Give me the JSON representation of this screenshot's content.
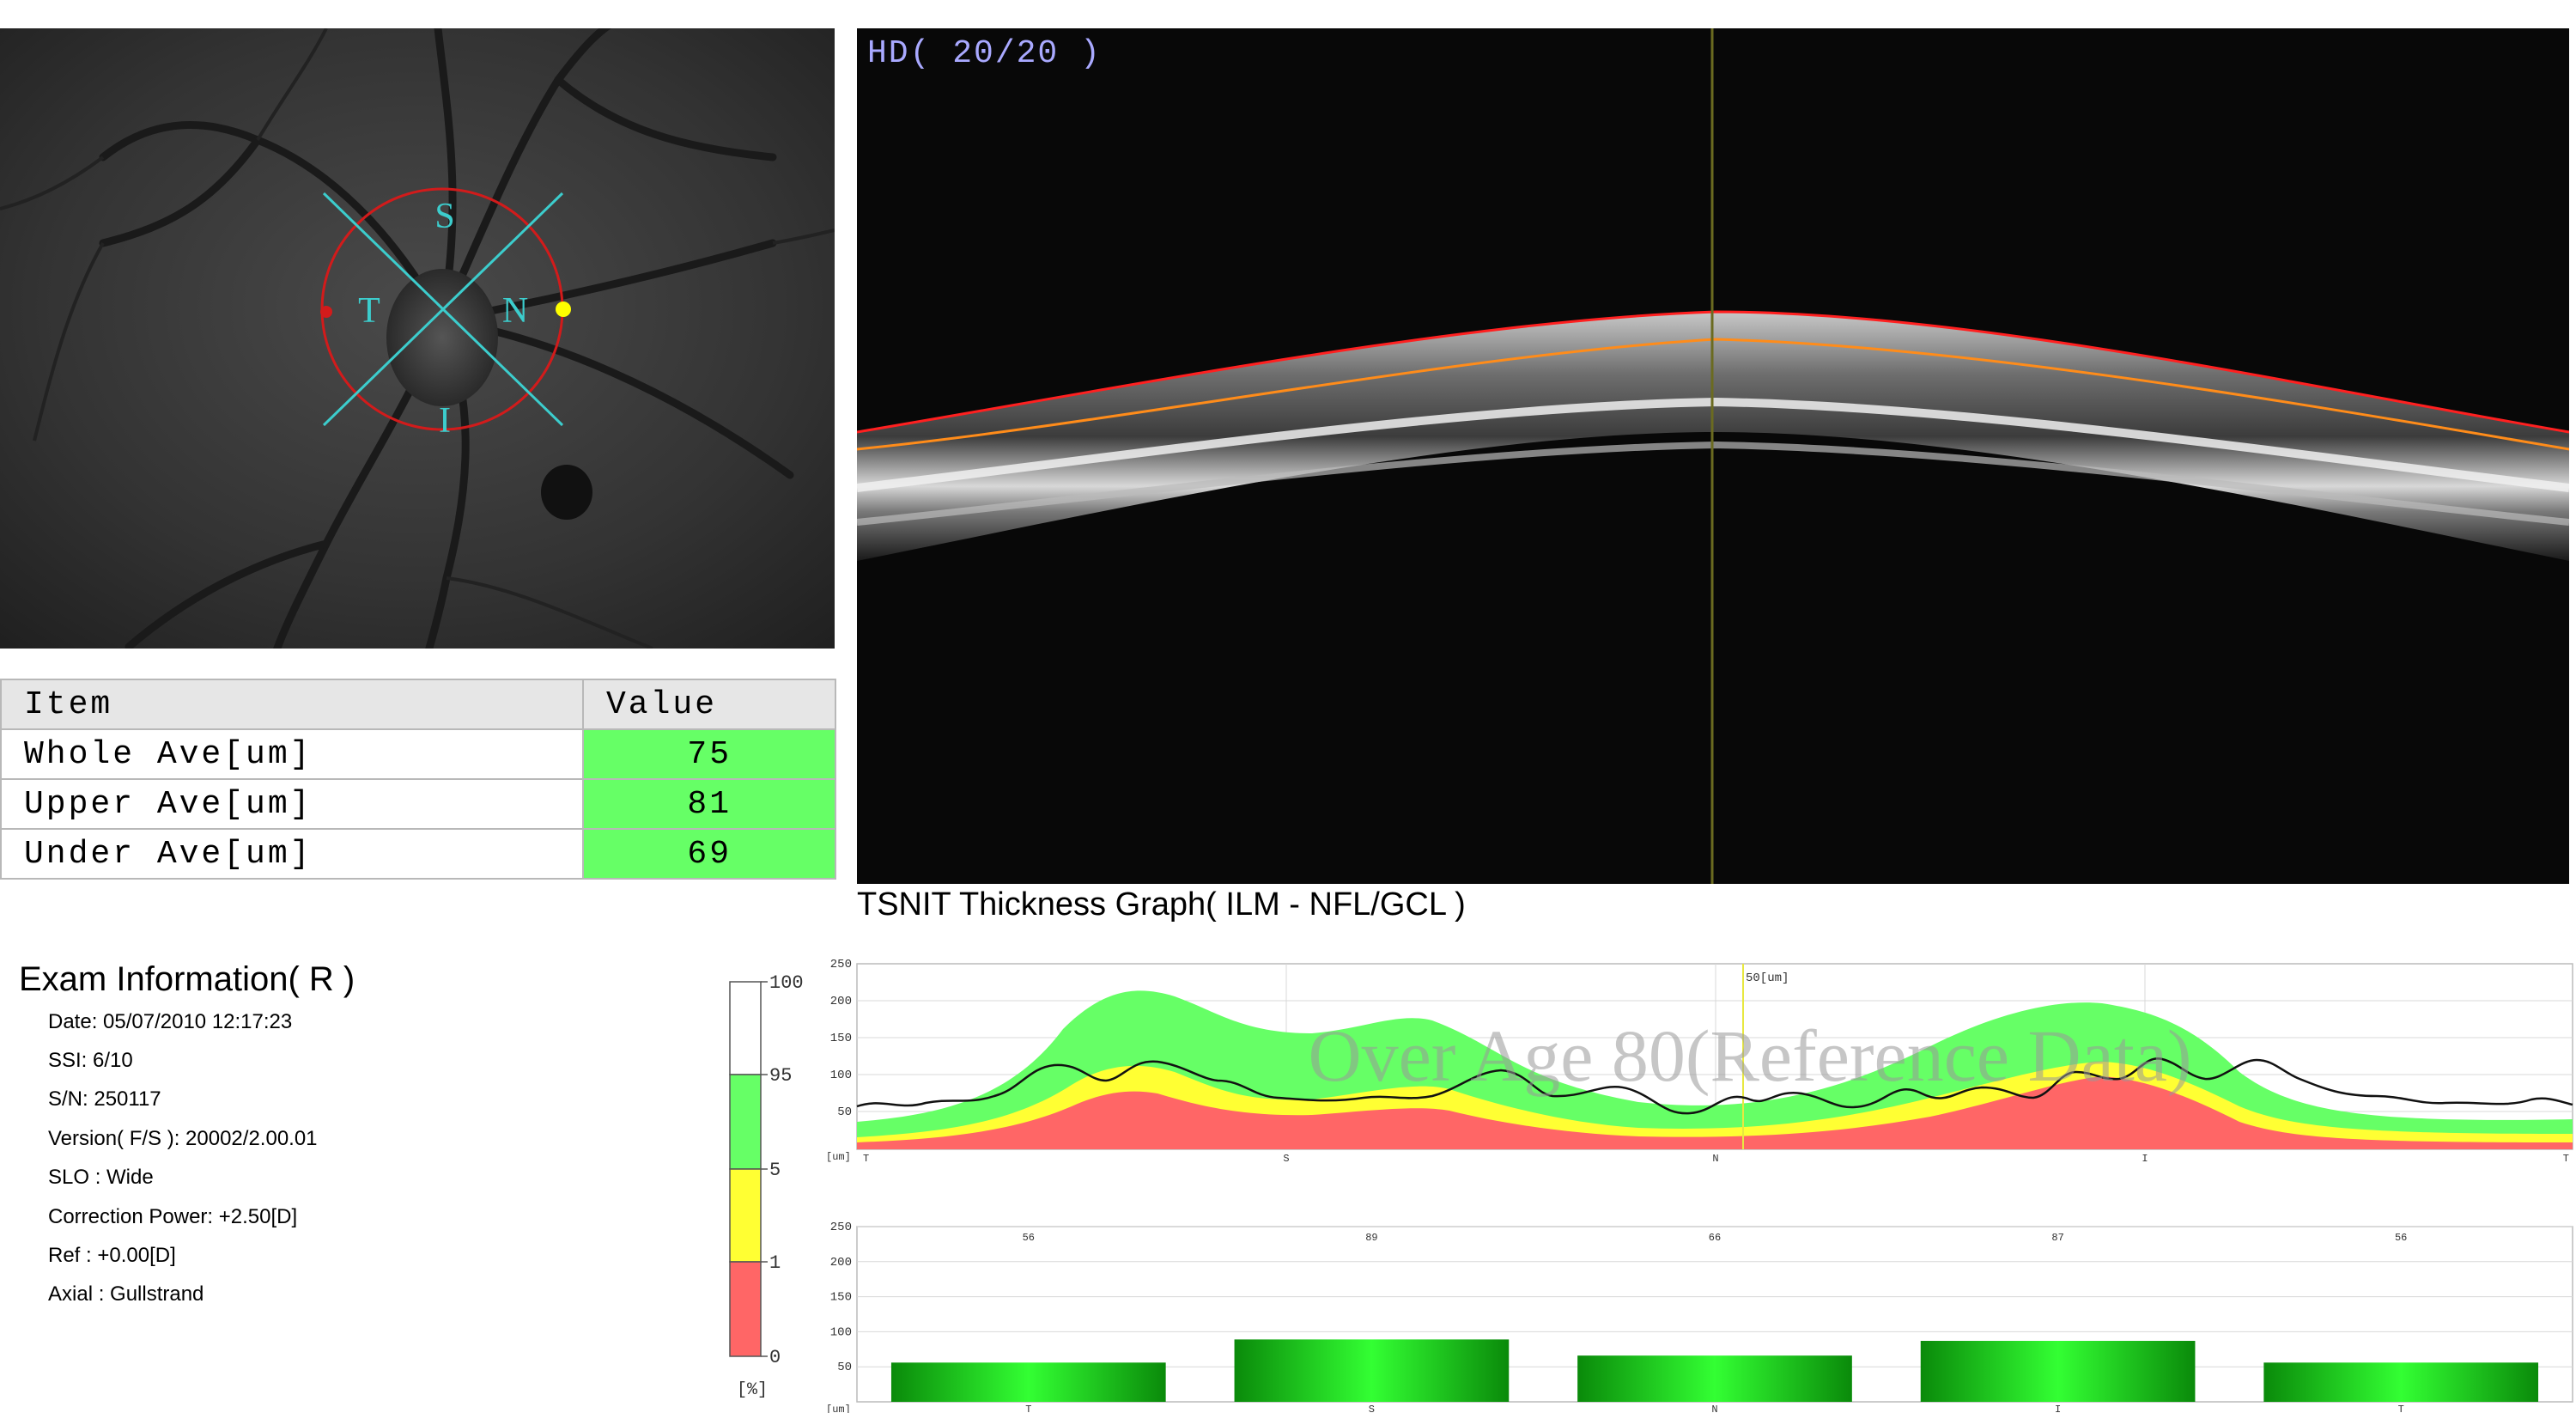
{
  "fundus": {
    "quadrants": {
      "superior": "S",
      "temporal": "T",
      "nasal": "N",
      "inferior": "I"
    }
  },
  "bscan": {
    "hd_label": "HD( 20/20 )"
  },
  "table": {
    "headers": {
      "item": "Item",
      "value": "Value"
    },
    "rows": [
      {
        "item": "Whole Ave[um]",
        "value": "75"
      },
      {
        "item": "Upper Ave[um]",
        "value": "81"
      },
      {
        "item": "Under Ave[um]",
        "value": "69"
      }
    ],
    "normal_color": "#66ff66"
  },
  "exam": {
    "title": "Exam Information( R )",
    "lines": [
      "Date: 05/07/2010 12:17:23",
      "SSI:  6/10",
      "S/N: 250117",
      "Version( F/S ): 20002/2.00.01",
      "SLO : Wide",
      "Correction Power: +2.50[D]",
      "Ref : +0.00[D]",
      "Axial : Gullstrand"
    ]
  },
  "tsnit": {
    "title": "TSNIT Thickness Graph( ILM - NFL/GCL )",
    "watermark": "Over Age 80(Reference Data)",
    "cursor_label": "50[um]",
    "unit_label": "[um]",
    "y_ticks": [
      "250",
      "200",
      "150",
      "100",
      "50"
    ],
    "x_labels": [
      "T",
      "S",
      "N",
      "I",
      "T"
    ],
    "colors": {
      "green": "#66ff66",
      "yellow": "#ffff33",
      "red": "#ff6666",
      "line": "#111111",
      "cursor": "#e8e840"
    }
  },
  "scale": {
    "ticks": [
      "100",
      "95",
      "5",
      "1",
      "0"
    ],
    "unit": "[%]",
    "colors": {
      "white": "#ffffff",
      "green": "#66ff66",
      "yellow": "#ffff33",
      "red": "#ff6666"
    }
  },
  "chart_data": {
    "type": "bar",
    "categories": [
      "T",
      "S",
      "N",
      "I",
      "T"
    ],
    "values": [
      56,
      89,
      66,
      87,
      56
    ],
    "ylim": [
      0,
      250
    ],
    "y_ticks": [
      250,
      200,
      150,
      100,
      50
    ],
    "unit_label": "[um]",
    "bar_color": "#22cc22"
  }
}
